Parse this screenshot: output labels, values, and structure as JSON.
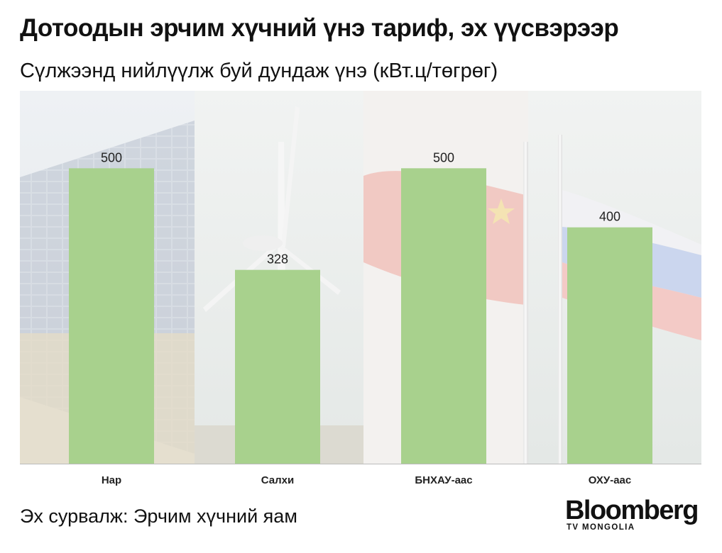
{
  "header": {
    "title": "Дотоодын эрчим хүчний үнэ тариф, эх үүсвэрээр",
    "subtitle": "Сүлжээнд нийлүүлж буй дундаж үнэ (кВт.ц/төгрөг)"
  },
  "footer": {
    "source": "Эх сурвалж: Эрчим хүчний яам",
    "brand": "Bloomberg",
    "brand_sub": "TV MONGOLIA"
  },
  "chart_data": {
    "type": "bar",
    "categories": [
      "Нар",
      "Салхи",
      "БНХАУ-аас",
      "ОХУ-аас"
    ],
    "values": [
      500,
      328,
      500,
      400
    ],
    "ylim": [
      0,
      600
    ],
    "grid": false,
    "legend": "none",
    "colors": {
      "bar": "#a8d18d",
      "label": "#222222"
    }
  }
}
